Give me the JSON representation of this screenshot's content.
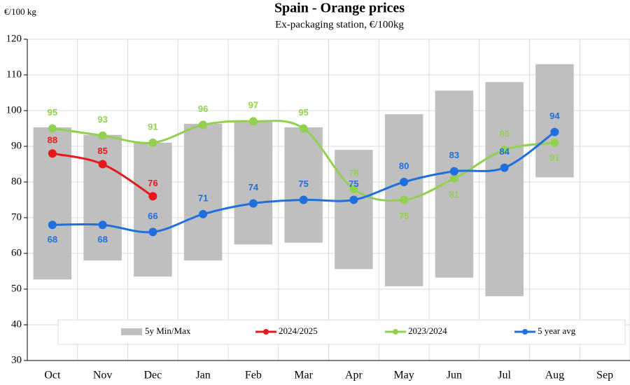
{
  "chart_data": {
    "type": "line",
    "title": "Spain  -  Orange prices",
    "subtitle": "Ex-packaging station, €/100kg",
    "y_axis_label": "€/100 kg",
    "categories": [
      "Oct",
      "Nov",
      "Dec",
      "Jan",
      "Feb",
      "Mar",
      "Apr",
      "May",
      "Jun",
      "Jul",
      "Aug",
      "Sep"
    ],
    "ylim": [
      30,
      120
    ],
    "yticks": [
      30,
      40,
      50,
      60,
      70,
      80,
      90,
      100,
      110,
      120
    ],
    "grid": true,
    "legend": "bottom",
    "range": {
      "name": "5y Min/Max",
      "color": "#bfbfbf",
      "min": [
        52.7,
        58,
        53.5,
        58,
        62.5,
        63,
        55.6,
        50.8,
        53.2,
        48,
        81.3,
        null
      ],
      "max": [
        95.3,
        93.2,
        91,
        96.3,
        97,
        95.3,
        89,
        99,
        105.6,
        108,
        113,
        null
      ]
    },
    "series": [
      {
        "name": "2024/2025",
        "color": "#e8191c",
        "values": [
          88,
          85,
          76,
          null,
          null,
          null,
          null,
          null,
          null,
          null,
          null,
          null
        ]
      },
      {
        "name": "2023/2024",
        "color": "#92d050",
        "values": [
          95,
          93,
          91,
          96,
          97,
          95,
          78,
          75,
          81,
          89,
          91,
          null
        ]
      },
      {
        "name": "5 year avg",
        "color": "#1f6fde",
        "values": [
          68,
          68,
          66,
          71,
          74,
          75,
          75,
          80,
          83,
          84,
          94,
          null
        ]
      }
    ]
  }
}
